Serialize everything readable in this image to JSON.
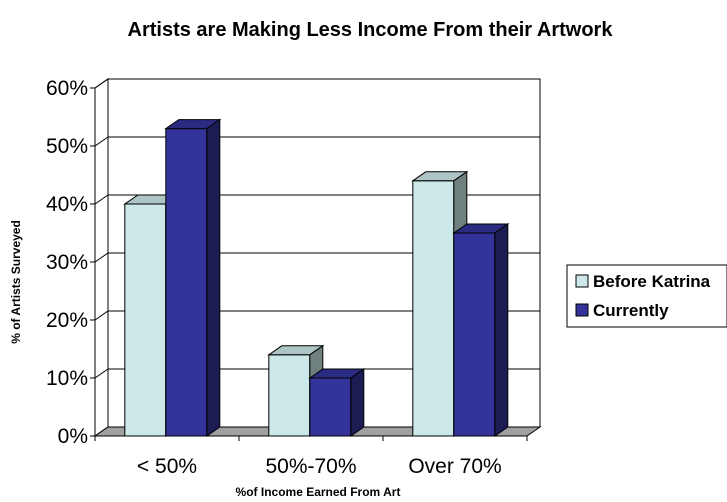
{
  "chart_data": {
    "type": "bar",
    "title": "Artists are Making Less Income From their Artwork",
    "xlabel": "%of Income Earned From Art",
    "ylabel": "% of Artists Surveyed",
    "categories": [
      "< 50%",
      "50%-70%",
      "Over 70%"
    ],
    "series": [
      {
        "name": "Before Katrina",
        "values": [
          40,
          14,
          44
        ],
        "color": "#cce8e8"
      },
      {
        "name": "Currently",
        "values": [
          53,
          10,
          35
        ],
        "color": "#333399"
      }
    ],
    "ylim": [
      0,
      60
    ],
    "yticks": [
      "0%",
      "10%",
      "20%",
      "30%",
      "40%",
      "50%",
      "60%"
    ],
    "grid": true,
    "style": "3d-clustered",
    "legend_position": "right"
  }
}
